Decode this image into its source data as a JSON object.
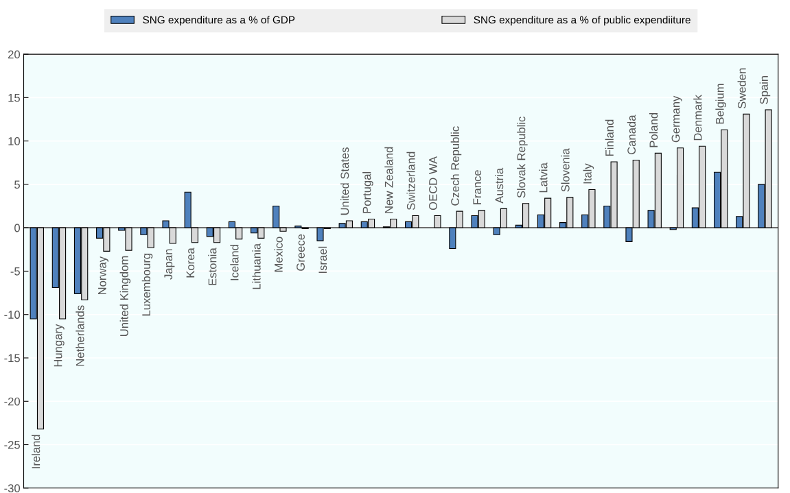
{
  "chart_data": {
    "type": "bar",
    "categories": [
      "Ireland",
      "Hungary",
      "Netherlands",
      "Norway",
      "United Kingdom",
      "Luxembourg",
      "Japan",
      "Korea",
      "Estonia",
      "Iceland",
      "Lithuania",
      "Mexico",
      "Greece",
      "Israel",
      "United States",
      "Portugal",
      "New Zealand",
      "Switzerland",
      "OECD WA",
      "Czech Republic",
      "France",
      "Austria",
      "Slovak Republic",
      "Latvia",
      "Slovenia",
      "Italy",
      "Finland",
      "Canada",
      "Poland",
      "Germany",
      "Denmark",
      "Belgium",
      "Sweden",
      "Spain"
    ],
    "series": [
      {
        "name": "SNG expenditure as a % of GDP",
        "color": "#4f81bd",
        "values": [
          -10.5,
          -6.9,
          -7.6,
          -1.2,
          -0.3,
          -0.8,
          0.8,
          4.1,
          -1.0,
          0.7,
          -0.6,
          2.5,
          0.2,
          -1.5,
          0.5,
          0.7,
          0.1,
          0.7,
          null,
          -2.4,
          1.4,
          -0.8,
          0.3,
          1.5,
          0.6,
          1.5,
          2.5,
          -1.6,
          2.0,
          -0.2,
          2.3,
          6.4,
          1.3,
          5.0
        ]
      },
      {
        "name": "SNG expenditure as a % of public expendiiture",
        "color": "#d9d9d9",
        "values": [
          -23.2,
          -10.5,
          -8.3,
          -2.7,
          -2.6,
          -2.3,
          -1.8,
          -1.7,
          -1.7,
          -1.3,
          -1.2,
          -0.4,
          -0.1,
          -0.1,
          0.8,
          1.0,
          1.0,
          1.4,
          1.4,
          1.9,
          2.0,
          2.2,
          2.8,
          3.4,
          3.5,
          4.4,
          7.6,
          7.8,
          8.6,
          9.2,
          9.4,
          11.3,
          13.1,
          13.6
        ]
      }
    ],
    "ylim": [
      -30,
      20
    ],
    "yticks": [
      -30,
      -25,
      -20,
      -15,
      -10,
      -5,
      0,
      5,
      10,
      15,
      20
    ],
    "grid": "y",
    "legend": "top"
  }
}
